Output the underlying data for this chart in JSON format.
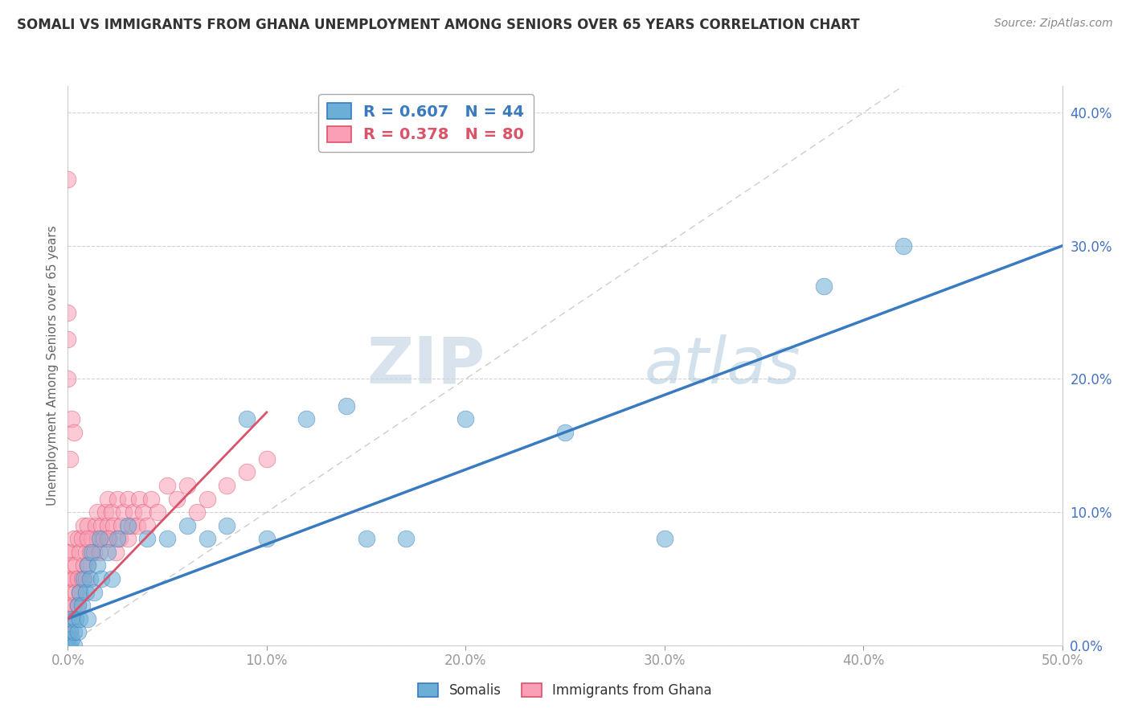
{
  "title": "SOMALI VS IMMIGRANTS FROM GHANA UNEMPLOYMENT AMONG SENIORS OVER 65 YEARS CORRELATION CHART",
  "source": "Source: ZipAtlas.com",
  "ylabel": "Unemployment Among Seniors over 65 years",
  "xlim": [
    0,
    0.5
  ],
  "ylim": [
    0,
    0.42
  ],
  "xticks": [
    0.0,
    0.1,
    0.2,
    0.3,
    0.4,
    0.5
  ],
  "yticks": [
    0.0,
    0.1,
    0.2,
    0.3,
    0.4
  ],
  "xtick_labels": [
    "0.0%",
    "10.0%",
    "20.0%",
    "30.0%",
    "40.0%",
    "50.0%"
  ],
  "ytick_labels": [
    "0.0%",
    "10.0%",
    "20.0%",
    "30.0%",
    "40.0%"
  ],
  "legend_somali": "R = 0.607   N = 44",
  "legend_ghana": "R = 0.378   N = 80",
  "legend_label_somali": "Somalis",
  "legend_label_ghana": "Immigrants from Ghana",
  "color_somali": "#6baed6",
  "color_ghana": "#fa9fb5",
  "color_somali_line": "#3a7abf",
  "color_ghana_line": "#d9536a",
  "watermark_zip": "ZIP",
  "watermark_atlas": "atlas",
  "somali_x": [
    0.0,
    0.0,
    0.001,
    0.001,
    0.002,
    0.002,
    0.003,
    0.003,
    0.004,
    0.005,
    0.005,
    0.006,
    0.006,
    0.007,
    0.008,
    0.009,
    0.01,
    0.01,
    0.011,
    0.012,
    0.013,
    0.015,
    0.016,
    0.017,
    0.02,
    0.022,
    0.025,
    0.03,
    0.04,
    0.05,
    0.06,
    0.07,
    0.08,
    0.09,
    0.1,
    0.12,
    0.14,
    0.15,
    0.17,
    0.2,
    0.25,
    0.3,
    0.38,
    0.42
  ],
  "somali_y": [
    0.0,
    0.005,
    0.0,
    0.01,
    0.005,
    0.02,
    0.0,
    0.01,
    0.02,
    0.01,
    0.03,
    0.02,
    0.04,
    0.03,
    0.05,
    0.04,
    0.02,
    0.06,
    0.05,
    0.07,
    0.04,
    0.06,
    0.08,
    0.05,
    0.07,
    0.05,
    0.08,
    0.09,
    0.08,
    0.08,
    0.09,
    0.08,
    0.09,
    0.17,
    0.08,
    0.17,
    0.18,
    0.08,
    0.08,
    0.17,
    0.16,
    0.08,
    0.27,
    0.3
  ],
  "ghana_x": [
    0.0,
    0.0,
    0.0,
    0.0,
    0.0,
    0.0,
    0.0,
    0.0,
    0.001,
    0.001,
    0.001,
    0.001,
    0.002,
    0.002,
    0.002,
    0.003,
    0.003,
    0.003,
    0.004,
    0.004,
    0.005,
    0.005,
    0.005,
    0.006,
    0.006,
    0.007,
    0.007,
    0.008,
    0.008,
    0.009,
    0.009,
    0.01,
    0.01,
    0.011,
    0.012,
    0.013,
    0.014,
    0.015,
    0.015,
    0.016,
    0.017,
    0.018,
    0.019,
    0.02,
    0.02,
    0.021,
    0.022,
    0.023,
    0.024,
    0.025,
    0.026,
    0.027,
    0.028,
    0.03,
    0.03,
    0.032,
    0.033,
    0.035,
    0.036,
    0.038,
    0.04,
    0.042,
    0.045,
    0.05,
    0.055,
    0.06,
    0.065,
    0.07,
    0.08,
    0.09,
    0.1,
    0.0,
    0.0,
    0.0,
    0.0,
    0.001,
    0.002,
    0.003,
    0.01,
    0.02
  ],
  "ghana_y": [
    0.0,
    0.0,
    0.0,
    0.01,
    0.02,
    0.03,
    0.05,
    0.07,
    0.01,
    0.03,
    0.05,
    0.07,
    0.02,
    0.04,
    0.06,
    0.03,
    0.05,
    0.08,
    0.04,
    0.06,
    0.03,
    0.05,
    0.08,
    0.04,
    0.07,
    0.05,
    0.08,
    0.06,
    0.09,
    0.05,
    0.07,
    0.06,
    0.09,
    0.07,
    0.08,
    0.07,
    0.09,
    0.08,
    0.1,
    0.07,
    0.09,
    0.08,
    0.1,
    0.09,
    0.11,
    0.08,
    0.1,
    0.09,
    0.07,
    0.11,
    0.08,
    0.09,
    0.1,
    0.08,
    0.11,
    0.09,
    0.1,
    0.09,
    0.11,
    0.1,
    0.09,
    0.11,
    0.1,
    0.12,
    0.11,
    0.12,
    0.1,
    0.11,
    0.12,
    0.13,
    0.14,
    0.2,
    0.23,
    0.25,
    0.35,
    0.14,
    0.17,
    0.16,
    0.08,
    0.08
  ],
  "blue_line_x0": 0.0,
  "blue_line_y0": 0.02,
  "blue_line_x1": 0.5,
  "blue_line_y1": 0.3,
  "pink_line_x0": 0.0,
  "pink_line_y0": 0.02,
  "pink_line_x1": 0.1,
  "pink_line_y1": 0.175
}
